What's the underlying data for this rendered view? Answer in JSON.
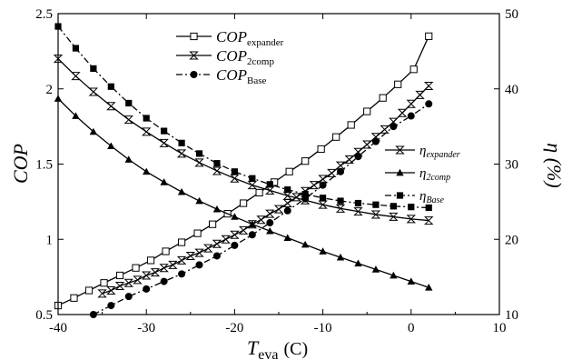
{
  "chart_data": {
    "type": "line",
    "title": "",
    "xlabel": "T",
    "xlabel_sub": "eva",
    "xlabel_unit": "(C)",
    "ylabel_left": "COP",
    "ylabel_right": "η (%)",
    "xlim": [
      -40,
      10
    ],
    "ylim_left": [
      0.5,
      2.5
    ],
    "ylim_right": [
      10,
      50
    ],
    "x_ticks": [
      -40,
      -30,
      -20,
      -10,
      0,
      10
    ],
    "x_tick_labels": [
      "-40",
      "-30",
      "-20",
      "-10",
      "0",
      "10"
    ],
    "y_left_ticks": [
      0.5,
      1,
      1.5,
      2,
      2.5
    ],
    "y_left_tick_labels": [
      "0.5",
      "1",
      "1.5",
      "2",
      "2.5"
    ],
    "y_right_ticks": [
      10,
      20,
      30,
      40,
      50
    ],
    "y_right_tick_labels": [
      "10",
      "20",
      "30",
      "40",
      "50"
    ],
    "grid": false,
    "legend_top": {
      "placement": "top-center",
      "entries": [
        {
          "main": "COP",
          "sub": "expander",
          "series": "cop_expander"
        },
        {
          "main": "COP",
          "sub": "2comp",
          "series": "cop_2comp"
        },
        {
          "main": "COP",
          "sub": "Base",
          "series": "cop_base"
        }
      ]
    },
    "legend_right": {
      "placement": "center-right",
      "entries": [
        {
          "main": "η",
          "sub": "expander",
          "series": "eta_expander"
        },
        {
          "main": "η",
          "sub": "2comp",
          "series": "eta_2comp"
        },
        {
          "main": "η",
          "sub": "Base",
          "series": "eta_base"
        }
      ]
    },
    "series": [
      {
        "id": "cop_expander",
        "axis": "left",
        "marker": "open-square",
        "line": "solid",
        "x": [
          -40,
          -38.2,
          -36.5,
          -34.8,
          -33,
          -31.2,
          -29.5,
          -27.8,
          -26,
          -24.2,
          -22.5,
          -20.8,
          -19,
          -17.2,
          -15.5,
          -13.8,
          -12,
          -10.2,
          -8.5,
          -6.8,
          -5,
          -3.2,
          -1.5,
          0.3,
          2
        ],
        "y": [
          0.56,
          0.61,
          0.66,
          0.71,
          0.76,
          0.81,
          0.86,
          0.92,
          0.98,
          1.04,
          1.1,
          1.17,
          1.24,
          1.31,
          1.38,
          1.45,
          1.52,
          1.6,
          1.68,
          1.76,
          1.85,
          1.94,
          2.03,
          2.13,
          2.35
        ]
      },
      {
        "id": "cop_2comp",
        "axis": "left",
        "marker": "bowtie",
        "line": "solid",
        "x": [
          -35,
          -34,
          -33,
          -32,
          -31,
          -30,
          -29,
          -28,
          -27,
          -26,
          -25,
          -24,
          -23,
          -22,
          -21,
          -20,
          -19,
          -18,
          -17,
          -16,
          -15,
          -14,
          -13,
          -12,
          -11,
          -10,
          -9,
          -8,
          -7,
          -6,
          -5,
          -4,
          -3,
          -2,
          -1,
          0,
          1,
          2
        ],
        "y": [
          0.64,
          0.66,
          0.69,
          0.71,
          0.73,
          0.76,
          0.78,
          0.81,
          0.83,
          0.86,
          0.89,
          0.91,
          0.94,
          0.97,
          1.0,
          1.03,
          1.06,
          1.1,
          1.13,
          1.17,
          1.2,
          1.24,
          1.28,
          1.32,
          1.36,
          1.4,
          1.44,
          1.49,
          1.53,
          1.58,
          1.63,
          1.68,
          1.73,
          1.78,
          1.84,
          1.9,
          1.96,
          2.02
        ]
      },
      {
        "id": "cop_base",
        "axis": "left",
        "marker": "filled-circle",
        "line": "dash-dot",
        "x": [
          -36,
          -34,
          -32,
          -30,
          -28,
          -26,
          -24,
          -22,
          -20,
          -18,
          -16,
          -14,
          -12,
          -10,
          -8,
          -6,
          -4,
          -2,
          0,
          2
        ],
        "y": [
          0.5,
          0.56,
          0.62,
          0.67,
          0.72,
          0.77,
          0.83,
          0.89,
          0.96,
          1.03,
          1.11,
          1.19,
          1.27,
          1.36,
          1.45,
          1.55,
          1.65,
          1.75,
          1.82,
          1.9
        ]
      },
      {
        "id": "eta_expander",
        "axis": "right",
        "marker": "bowtie",
        "line": "solid",
        "x": [
          -40,
          -38,
          -36,
          -34,
          -32,
          -30,
          -28,
          -26,
          -24,
          -22,
          -20,
          -18,
          -16,
          -14,
          -12,
          -10,
          -8,
          -6,
          -4,
          -2,
          0,
          2
        ],
        "y": [
          44,
          41.7,
          39.6,
          37.7,
          35.9,
          34.3,
          32.8,
          31.4,
          30.2,
          29.1,
          28.1,
          27.2,
          26.5,
          25.8,
          25.2,
          24.6,
          24.1,
          23.7,
          23.3,
          23,
          22.7,
          22.5
        ]
      },
      {
        "id": "eta_2comp",
        "axis": "right",
        "marker": "filled-triangle",
        "line": "solid",
        "x": [
          -40,
          -38,
          -36,
          -34,
          -32,
          -30,
          -28,
          -26,
          -24,
          -22,
          -20,
          -18,
          -16,
          -14,
          -12,
          -10,
          -8,
          -6,
          -4,
          -2,
          0,
          2
        ],
        "y": [
          38.7,
          36.4,
          34.3,
          32.4,
          30.6,
          29,
          27.6,
          26.3,
          25.1,
          24,
          23,
          22,
          21.1,
          20.2,
          19.3,
          18.4,
          17.6,
          16.8,
          16,
          15.2,
          14.4,
          13.6
        ]
      },
      {
        "id": "eta_base",
        "axis": "right",
        "marker": "filled-square",
        "line": "dash-dot",
        "x": [
          -40,
          -38,
          -36,
          -34,
          -32,
          -30,
          -28,
          -26,
          -24,
          -22,
          -20,
          -18,
          -16,
          -14,
          -12,
          -10,
          -8,
          -6,
          -4,
          -2,
          0,
          2
        ],
        "y": [
          48.3,
          45.4,
          42.7,
          40.3,
          38.1,
          36.1,
          34.4,
          32.8,
          31.4,
          30.1,
          29,
          28.1,
          27.3,
          26.6,
          26,
          25.5,
          25.1,
          24.8,
          24.6,
          24.4,
          24.3,
          24.2
        ]
      }
    ]
  }
}
